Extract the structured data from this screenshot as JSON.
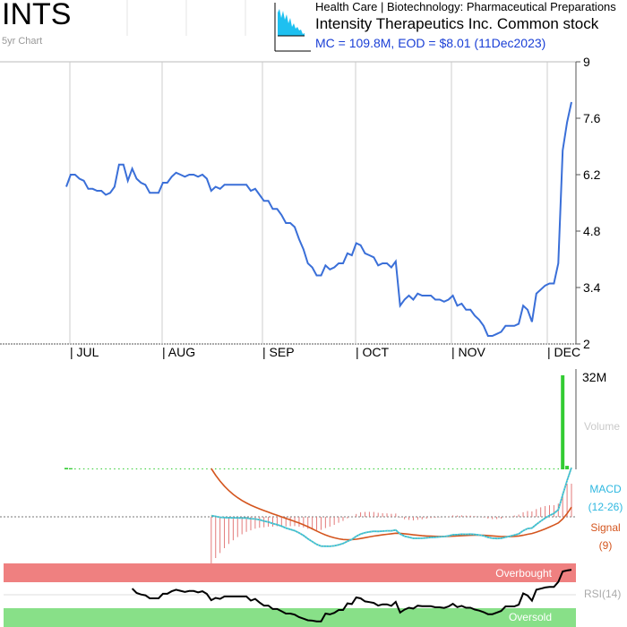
{
  "header": {
    "ticker": "INTS",
    "subtitle": "5yr Chart",
    "sector": "Health Care | Biotechnology: Pharmaceutical Preparations",
    "company": "Intensity Therapeutics Inc. Common stock",
    "mc_eod": "MC = 109.8M, EOD = $8.01 (11Dec2023)"
  },
  "colors": {
    "price_line": "#3a6fd8",
    "volume_bar": "#33cc33",
    "macd_line": "#2fb8e0",
    "signal_line": "#d4551e",
    "histogram": "#e37a7a",
    "overbought_band": "#ef8080",
    "oversold_band": "#88e088",
    "rsi_line": "#000000",
    "gridline": "#cccccc",
    "thumbnail_fill": "#1ec0f0"
  },
  "chart_data": [
    {
      "type": "line",
      "panel": "price",
      "title": "",
      "xlabel": "",
      "ylabel": "",
      "ylim": [
        2,
        9
      ],
      "y_ticks": [
        "9",
        "7.6",
        "6.2",
        "4.8",
        "3.4",
        "2"
      ],
      "x_tick_labels": [
        "| JUL",
        "| AUG",
        "| SEP",
        "| OCT",
        "| NOV",
        "| DEC"
      ],
      "grid": "vertical at month starts",
      "series": [
        {
          "values": [
            5.9,
            6.2,
            6.2,
            6.1,
            6.05,
            5.85,
            5.85,
            5.8,
            5.8,
            5.7,
            5.75,
            5.9,
            6.45,
            6.45,
            6.05,
            6.35,
            6.1,
            6.0,
            5.95,
            5.75,
            5.75,
            5.75,
            6.0,
            6.0,
            6.15,
            6.25,
            6.2,
            6.15,
            6.2,
            6.2,
            6.15,
            6.2,
            6.1,
            5.8,
            5.9,
            5.85,
            5.95,
            5.95,
            5.95,
            5.95,
            5.95,
            5.95,
            5.8,
            5.85,
            5.7,
            5.55,
            5.55,
            5.35,
            5.35,
            5.2,
            5.0,
            5.0,
            4.9,
            4.6,
            4.35,
            4.0,
            3.9,
            3.7,
            3.7,
            3.95,
            3.85,
            3.9,
            4.0,
            4.0,
            4.25,
            4.2,
            4.5,
            4.45,
            4.25,
            4.2,
            4.15,
            3.95,
            4.0,
            4.0,
            3.9,
            4.05,
            2.95,
            3.1,
            3.2,
            3.1,
            3.25,
            3.2,
            3.2,
            3.2,
            3.1,
            3.1,
            3.05,
            3.1,
            3.2,
            2.95,
            3.0,
            2.85,
            2.85,
            2.7,
            2.6,
            2.45,
            2.2,
            2.2,
            2.25,
            2.3,
            2.45,
            2.45,
            2.45,
            2.5,
            2.95,
            2.85,
            2.55,
            3.25,
            3.35,
            3.45,
            3.5,
            3.5,
            4.0,
            6.8,
            7.5,
            8.0
          ]
        }
      ]
    },
    {
      "type": "bar",
      "panel": "volume",
      "label": "Volume",
      "y_tick": "32M",
      "ylim": [
        0,
        32
      ],
      "values": [
        0.5,
        0.4,
        0.1,
        0.1,
        0.1,
        0.1,
        0.1,
        0.1,
        0.1,
        0.1,
        0.1,
        0.1,
        0.1,
        0.1,
        0.1,
        0.1,
        0.1,
        0.1,
        0.1,
        0.1,
        0.1,
        0.1,
        0.1,
        0.1,
        0.1,
        0.1,
        0.1,
        0.1,
        0.1,
        0.1,
        0.1,
        0.1,
        0.1,
        0.1,
        0.1,
        0.1,
        0.1,
        0.1,
        0.1,
        0.1,
        0.1,
        0.1,
        0.1,
        0.1,
        0.1,
        0.1,
        0.1,
        0.1,
        0.1,
        0.1,
        0.1,
        0.1,
        0.1,
        0.1,
        0.1,
        0.1,
        0.1,
        0.1,
        0.1,
        0.1,
        0.1,
        0.1,
        0.1,
        0.1,
        0.1,
        0.1,
        0.1,
        0.1,
        0.1,
        0.1,
        0.1,
        0.1,
        0.1,
        0.1,
        0.1,
        0.1,
        0.1,
        0.1,
        0.1,
        0.1,
        0.1,
        0.1,
        0.1,
        0.1,
        0.1,
        0.1,
        0.1,
        0.1,
        0.1,
        0.1,
        0.1,
        0.1,
        0.1,
        0.1,
        0.1,
        0.1,
        0.1,
        0.1,
        0.1,
        0.1,
        0.1,
        0.1,
        0.1,
        0.1,
        0.1,
        0.1,
        0.1,
        0.1,
        0.1,
        0.1,
        0.1,
        0.1,
        0.2,
        32,
        1.2
      ]
    },
    {
      "type": "line",
      "panel": "macd",
      "legend": [
        "MACD",
        "(12-26)",
        "Signal",
        "(9)"
      ],
      "ylim": [
        -1,
        1
      ]
    },
    {
      "type": "line",
      "panel": "rsi",
      "label": "RSI(14)",
      "bands": [
        "Overbought",
        "Oversold"
      ],
      "ylim": [
        0,
        100
      ]
    }
  ]
}
